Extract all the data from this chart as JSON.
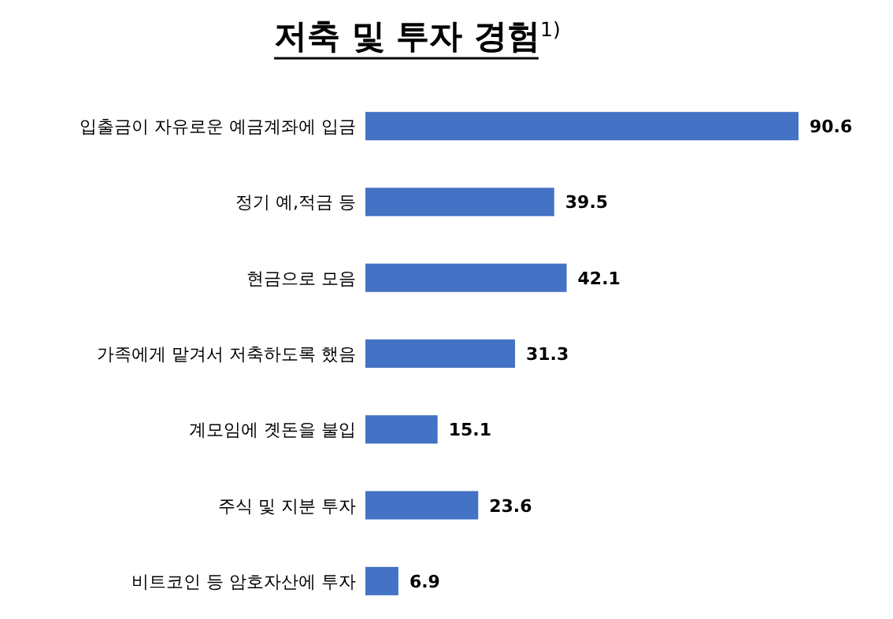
{
  "chart_data": {
    "type": "bar",
    "orientation": "horizontal",
    "title": "저축 및 투자 경험$^{1)}$",
    "categories": [
      "입출금이 자유로운 예금계좌에 입금",
      "정기 예,적금 등",
      "현금으로 모음",
      "가족에게 맡겨서 저축하도록 했음",
      "계모임에 곗돈을 불입",
      "주식 및 지분 투자",
      "비트코인 등 암호자산에 투자"
    ],
    "values": [
      90.6,
      39.5,
      42.1,
      31.3,
      15.1,
      23.6,
      6.9
    ],
    "color": "#4472c4",
    "data_labels": true
  }
}
